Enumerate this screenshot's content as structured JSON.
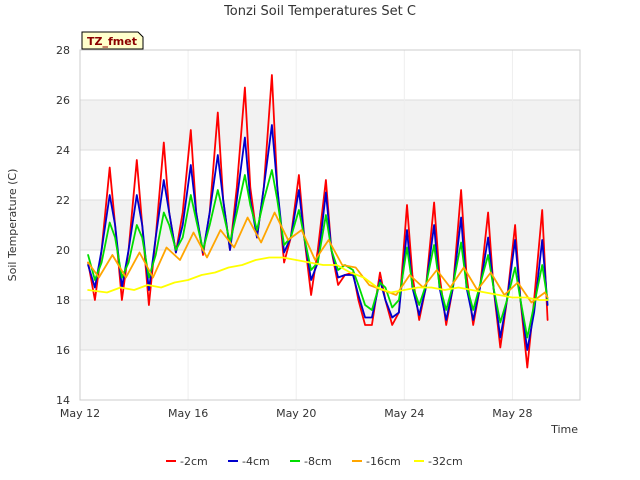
{
  "chart_data": {
    "type": "line",
    "title": "Tonzi Soil Temperatures Set C",
    "xlabel": "Time",
    "ylabel": "Soil Temperature (C)",
    "site_tag": "TZ_fmet",
    "xlim": [
      0,
      18.5
    ],
    "ylim": [
      14,
      28
    ],
    "grid": true,
    "legend_position": "bottom",
    "x_ticks": [
      {
        "x": 0,
        "label": "May 12"
      },
      {
        "x": 4,
        "label": "May 16"
      },
      {
        "x": 8,
        "label": "May 20"
      },
      {
        "x": 12,
        "label": "May 24"
      },
      {
        "x": 16,
        "label": "May 28"
      }
    ],
    "y_ticks": [
      14,
      16,
      18,
      20,
      22,
      24,
      26,
      28
    ],
    "series": [
      {
        "name": "-2cm",
        "color": "#ff0000",
        "x": [
          0.3,
          0.55,
          0.8,
          1.1,
          1.3,
          1.55,
          1.8,
          2.1,
          2.3,
          2.55,
          2.8,
          3.1,
          3.3,
          3.55,
          3.8,
          4.1,
          4.3,
          4.55,
          4.8,
          5.1,
          5.3,
          5.55,
          5.8,
          6.1,
          6.3,
          6.55,
          6.8,
          7.1,
          7.3,
          7.55,
          7.8,
          8.1,
          8.3,
          8.55,
          8.8,
          9.1,
          9.3,
          9.55,
          9.8,
          10.1,
          10.3,
          10.55,
          10.8,
          11.1,
          11.3,
          11.55,
          11.8,
          12.1,
          12.3,
          12.55,
          12.8,
          13.1,
          13.3,
          13.55,
          13.8,
          14.1,
          14.3,
          14.55,
          14.8,
          15.1,
          15.3,
          15.55,
          15.8,
          16.1,
          16.3,
          16.55,
          16.8,
          17.1,
          17.3
        ],
        "y": [
          19.5,
          18.0,
          20.0,
          23.3,
          21.0,
          18.0,
          20.0,
          23.6,
          21.0,
          17.8,
          20.5,
          24.3,
          21.5,
          19.9,
          21.5,
          24.8,
          21.5,
          19.8,
          21.5,
          25.5,
          22.0,
          20.0,
          22.5,
          26.5,
          22.5,
          20.5,
          22.5,
          27.0,
          22.5,
          19.5,
          20.5,
          23.0,
          20.5,
          18.2,
          20.0,
          22.8,
          20.0,
          18.6,
          19.0,
          19.1,
          18.0,
          17.0,
          17.0,
          19.1,
          18.0,
          17.0,
          17.5,
          21.8,
          19.0,
          17.2,
          18.5,
          21.9,
          19.0,
          17.0,
          18.5,
          22.4,
          19.0,
          17.0,
          18.5,
          21.5,
          18.5,
          16.1,
          18.0,
          21.0,
          18.0,
          15.3,
          18.0,
          21.6,
          17.2
        ]
      },
      {
        "name": "-4cm",
        "color": "#0000cc",
        "x": [
          0.3,
          0.55,
          0.8,
          1.1,
          1.3,
          1.55,
          1.8,
          2.1,
          2.3,
          2.55,
          2.8,
          3.1,
          3.3,
          3.55,
          3.8,
          4.1,
          4.3,
          4.55,
          4.8,
          5.1,
          5.3,
          5.55,
          5.8,
          6.1,
          6.3,
          6.55,
          6.8,
          7.1,
          7.3,
          7.55,
          7.8,
          8.1,
          8.3,
          8.55,
          8.8,
          9.1,
          9.3,
          9.55,
          9.8,
          10.1,
          10.3,
          10.55,
          10.8,
          11.1,
          11.3,
          11.55,
          11.8,
          12.1,
          12.3,
          12.55,
          12.8,
          13.1,
          13.3,
          13.55,
          13.8,
          14.1,
          14.3,
          14.55,
          14.8,
          15.1,
          15.3,
          15.55,
          15.8,
          16.1,
          16.3,
          16.55,
          16.8,
          17.1,
          17.3
        ],
        "y": [
          19.4,
          18.5,
          20.0,
          22.2,
          21.0,
          18.5,
          20.0,
          22.2,
          21.0,
          18.4,
          20.5,
          22.8,
          21.5,
          19.9,
          21.0,
          23.4,
          21.5,
          19.9,
          21.5,
          23.8,
          22.0,
          20.0,
          22.0,
          24.5,
          22.0,
          20.5,
          22.5,
          25.0,
          22.5,
          19.9,
          20.5,
          22.4,
          20.5,
          18.8,
          19.5,
          22.3,
          20.0,
          18.9,
          19.0,
          19.0,
          18.2,
          17.3,
          17.3,
          18.8,
          18.0,
          17.3,
          17.5,
          20.8,
          18.5,
          17.4,
          18.5,
          21.0,
          18.5,
          17.2,
          18.5,
          21.3,
          18.5,
          17.2,
          18.5,
          20.5,
          18.5,
          16.5,
          18.0,
          20.4,
          18.0,
          16.0,
          17.5,
          20.4,
          17.8
        ]
      },
      {
        "name": "-8cm",
        "color": "#00dd00",
        "x": [
          0.3,
          0.55,
          0.8,
          1.1,
          1.3,
          1.55,
          1.8,
          2.1,
          2.3,
          2.55,
          2.8,
          3.1,
          3.3,
          3.55,
          3.8,
          4.1,
          4.3,
          4.55,
          4.8,
          5.1,
          5.3,
          5.55,
          5.8,
          6.1,
          6.3,
          6.55,
          6.8,
          7.1,
          7.3,
          7.55,
          7.8,
          8.1,
          8.3,
          8.55,
          8.8,
          9.1,
          9.3,
          9.55,
          9.8,
          10.1,
          10.3,
          10.55,
          10.8,
          11.1,
          11.3,
          11.55,
          11.8,
          12.1,
          12.3,
          12.55,
          12.8,
          13.1,
          13.3,
          13.55,
          13.8,
          14.1,
          14.3,
          14.55,
          14.8,
          15.1,
          15.3,
          15.55,
          15.8,
          16.1,
          16.3,
          16.55,
          16.8,
          17.1,
          17.3
        ],
        "y": [
          19.8,
          18.8,
          19.5,
          21.1,
          20.5,
          18.9,
          19.5,
          21.0,
          20.5,
          18.9,
          19.8,
          21.5,
          21.0,
          20.0,
          20.5,
          22.2,
          21.2,
          20.0,
          21.0,
          22.4,
          21.5,
          20.3,
          21.5,
          23.0,
          21.8,
          20.8,
          22.0,
          23.2,
          22.0,
          20.2,
          20.5,
          21.6,
          20.5,
          19.2,
          19.5,
          21.4,
          20.0,
          19.2,
          19.4,
          19.2,
          18.6,
          17.8,
          17.6,
          18.7,
          18.5,
          17.7,
          18.0,
          20.1,
          18.6,
          17.8,
          18.6,
          20.2,
          18.6,
          17.6,
          18.6,
          20.3,
          18.6,
          17.6,
          18.6,
          19.8,
          18.5,
          17.1,
          18.0,
          19.3,
          18.0,
          16.5,
          17.8,
          19.4,
          18.0
        ]
      },
      {
        "name": "-16cm",
        "color": "#ffa500",
        "x": [
          0.3,
          0.7,
          1.2,
          1.7,
          2.2,
          2.7,
          3.2,
          3.7,
          4.2,
          4.7,
          5.2,
          5.7,
          6.2,
          6.7,
          7.2,
          7.7,
          8.2,
          8.7,
          9.2,
          9.7,
          10.2,
          10.7,
          11.2,
          11.7,
          12.2,
          12.7,
          13.2,
          13.7,
          14.2,
          14.7,
          15.2,
          15.7,
          16.2,
          16.7,
          17.2,
          17.3
        ],
        "y": [
          19.5,
          18.9,
          19.8,
          18.9,
          19.9,
          18.9,
          20.1,
          19.6,
          20.7,
          19.7,
          20.8,
          20.1,
          21.3,
          20.3,
          21.5,
          20.4,
          20.8,
          19.6,
          20.4,
          19.4,
          19.3,
          18.6,
          18.4,
          18.2,
          19.0,
          18.5,
          19.2,
          18.5,
          19.3,
          18.4,
          19.1,
          18.2,
          18.7,
          17.9,
          18.3,
          18.1
        ]
      },
      {
        "name": "-32cm",
        "color": "#ffff00",
        "x": [
          0.3,
          1.0,
          1.5,
          2.0,
          2.5,
          3.0,
          3.5,
          4.0,
          4.5,
          5.0,
          5.5,
          6.0,
          6.5,
          7.0,
          7.5,
          8.0,
          8.5,
          9.0,
          9.5,
          10.0,
          10.5,
          11.0,
          11.5,
          12.0,
          12.5,
          13.0,
          13.5,
          14.0,
          14.5,
          15.0,
          15.5,
          16.0,
          16.5,
          17.0,
          17.3
        ],
        "y": [
          18.4,
          18.3,
          18.5,
          18.4,
          18.6,
          18.5,
          18.7,
          18.8,
          19.0,
          19.1,
          19.3,
          19.4,
          19.6,
          19.7,
          19.7,
          19.6,
          19.5,
          19.4,
          19.4,
          19.1,
          18.9,
          18.5,
          18.3,
          18.4,
          18.5,
          18.5,
          18.4,
          18.5,
          18.4,
          18.3,
          18.2,
          18.1,
          18.1,
          18.0,
          18.0
        ]
      }
    ]
  }
}
